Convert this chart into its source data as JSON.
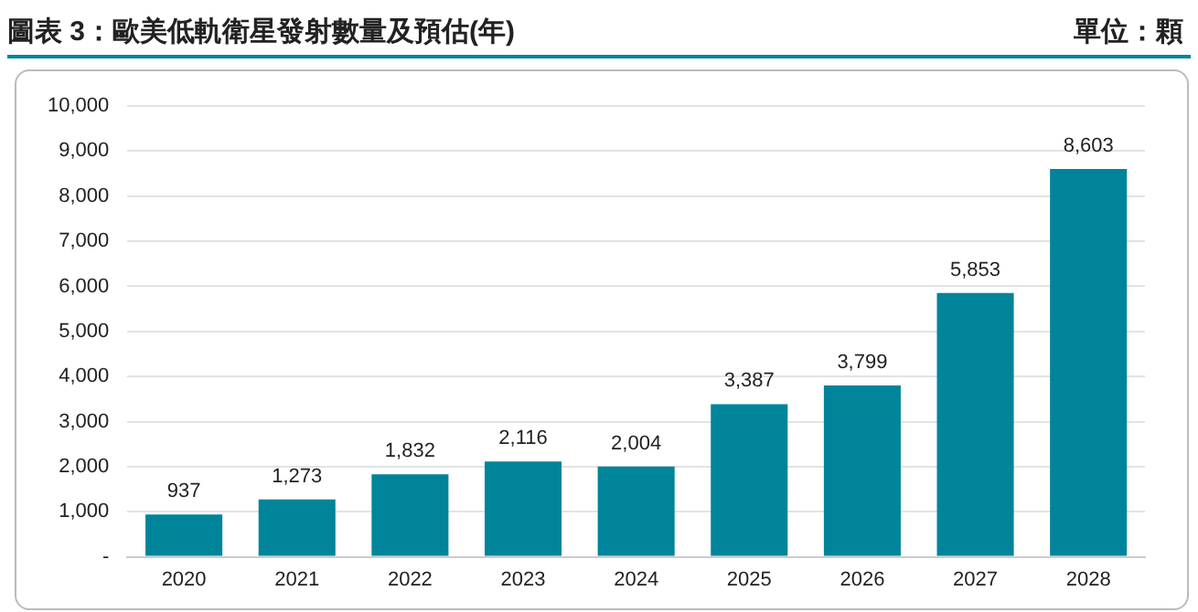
{
  "chart_data": {
    "type": "bar",
    "title": "圖表 3：歐美低軌衛星發射數量及預估(年)",
    "annotations": [
      "單位：顆"
    ],
    "categories": [
      "2020",
      "2021",
      "2022",
      "2023",
      "2024",
      "2025",
      "2026",
      "2027",
      "2028"
    ],
    "values": [
      937,
      1273,
      1832,
      2116,
      2004,
      3387,
      3799,
      5853,
      8603
    ],
    "value_labels": [
      "937",
      "1,273",
      "1,832",
      "2,116",
      "2,004",
      "3,387",
      "3,799",
      "5,853",
      "8,603"
    ],
    "color": "#00849a",
    "ylim": [
      0,
      10000
    ],
    "yticks": [
      {
        "value": 0,
        "label": "-"
      },
      {
        "value": 1000,
        "label": "1,000"
      },
      {
        "value": 2000,
        "label": "2,000"
      },
      {
        "value": 3000,
        "label": "3,000"
      },
      {
        "value": 4000,
        "label": "4,000"
      },
      {
        "value": 5000,
        "label": "5,000"
      },
      {
        "value": 6000,
        "label": "6,000"
      },
      {
        "value": 7000,
        "label": "7,000"
      },
      {
        "value": 8000,
        "label": "8,000"
      },
      {
        "value": 9000,
        "label": "9,000"
      },
      {
        "value": 10000,
        "label": "10,000"
      }
    ],
    "grid": "y",
    "legend": false
  }
}
